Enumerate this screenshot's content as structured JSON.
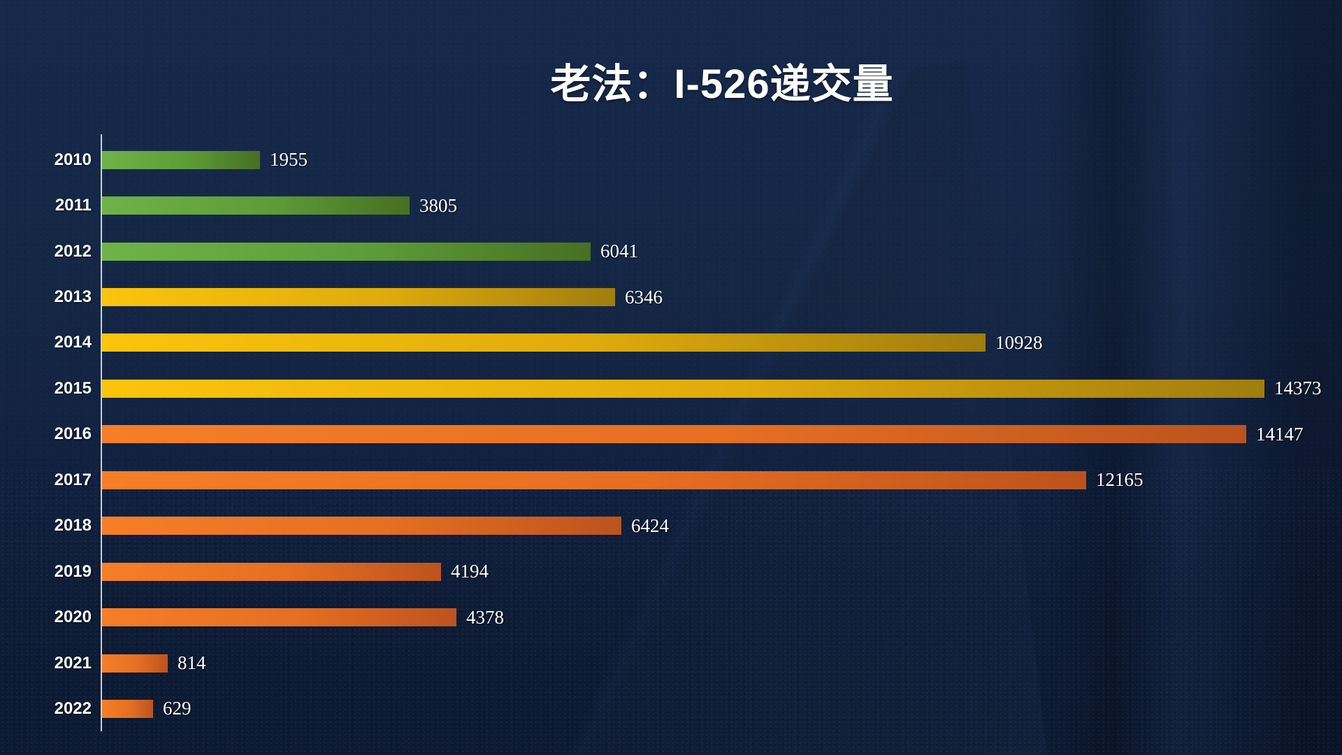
{
  "title": "老法：I-526递交量",
  "chart_data": {
    "type": "bar",
    "orientation": "horizontal",
    "title": "老法：I-526递交量",
    "categories": [
      "2010",
      "2011",
      "2012",
      "2013",
      "2014",
      "2015",
      "2016",
      "2017",
      "2018",
      "2019",
      "2020",
      "2021",
      "2022"
    ],
    "values": [
      1955,
      3805,
      6041,
      6346,
      10928,
      14373,
      14147,
      12165,
      6424,
      4194,
      4378,
      814,
      629
    ],
    "value_labels": [
      "1955",
      "3805",
      "6041",
      "6346",
      "10928",
      "14373",
      "14147",
      "12165",
      "6424",
      "4194",
      "4378",
      "814",
      "629"
    ],
    "bar_color_groups": [
      "green",
      "green",
      "green",
      "gold",
      "gold",
      "gold",
      "orange",
      "orange",
      "orange",
      "orange",
      "orange",
      "orange",
      "orange"
    ],
    "xlim": [
      0,
      14373
    ],
    "grid": false,
    "legend": false,
    "colors": {
      "green_start": "#6fb347",
      "green_end": "#486f22",
      "gold_start": "#fbc40d",
      "gold_end": "#a07d0e",
      "orange_start": "#f67e27",
      "orange_end": "#bc531e",
      "background": "#152745",
      "axis": "#d9dee8",
      "text": "#ffffff"
    }
  }
}
